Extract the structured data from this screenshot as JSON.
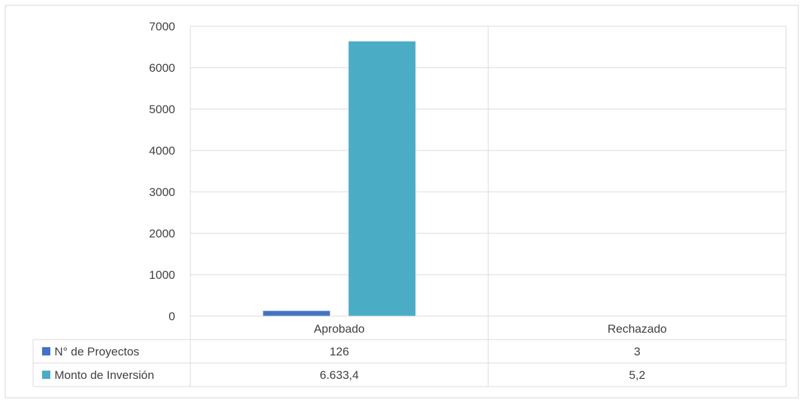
{
  "chart_data": {
    "type": "bar",
    "categories": [
      "Aprobado",
      "Rechazado"
    ],
    "series": [
      {
        "name": "N° de Proyectos",
        "values": [
          126,
          3
        ],
        "labels": [
          "126",
          "3"
        ],
        "color": "#4472c4"
      },
      {
        "name": "Monto de Inversión",
        "values": [
          6633.4,
          5.2
        ],
        "labels": [
          "6.633,4",
          "5,2"
        ],
        "color": "#4bacc6"
      }
    ],
    "yticks": [
      "0",
      "1000",
      "2000",
      "3000",
      "4000",
      "5000",
      "6000",
      "7000"
    ],
    "ylim": [
      0,
      7000
    ],
    "grid": true,
    "legend": "data-table"
  }
}
